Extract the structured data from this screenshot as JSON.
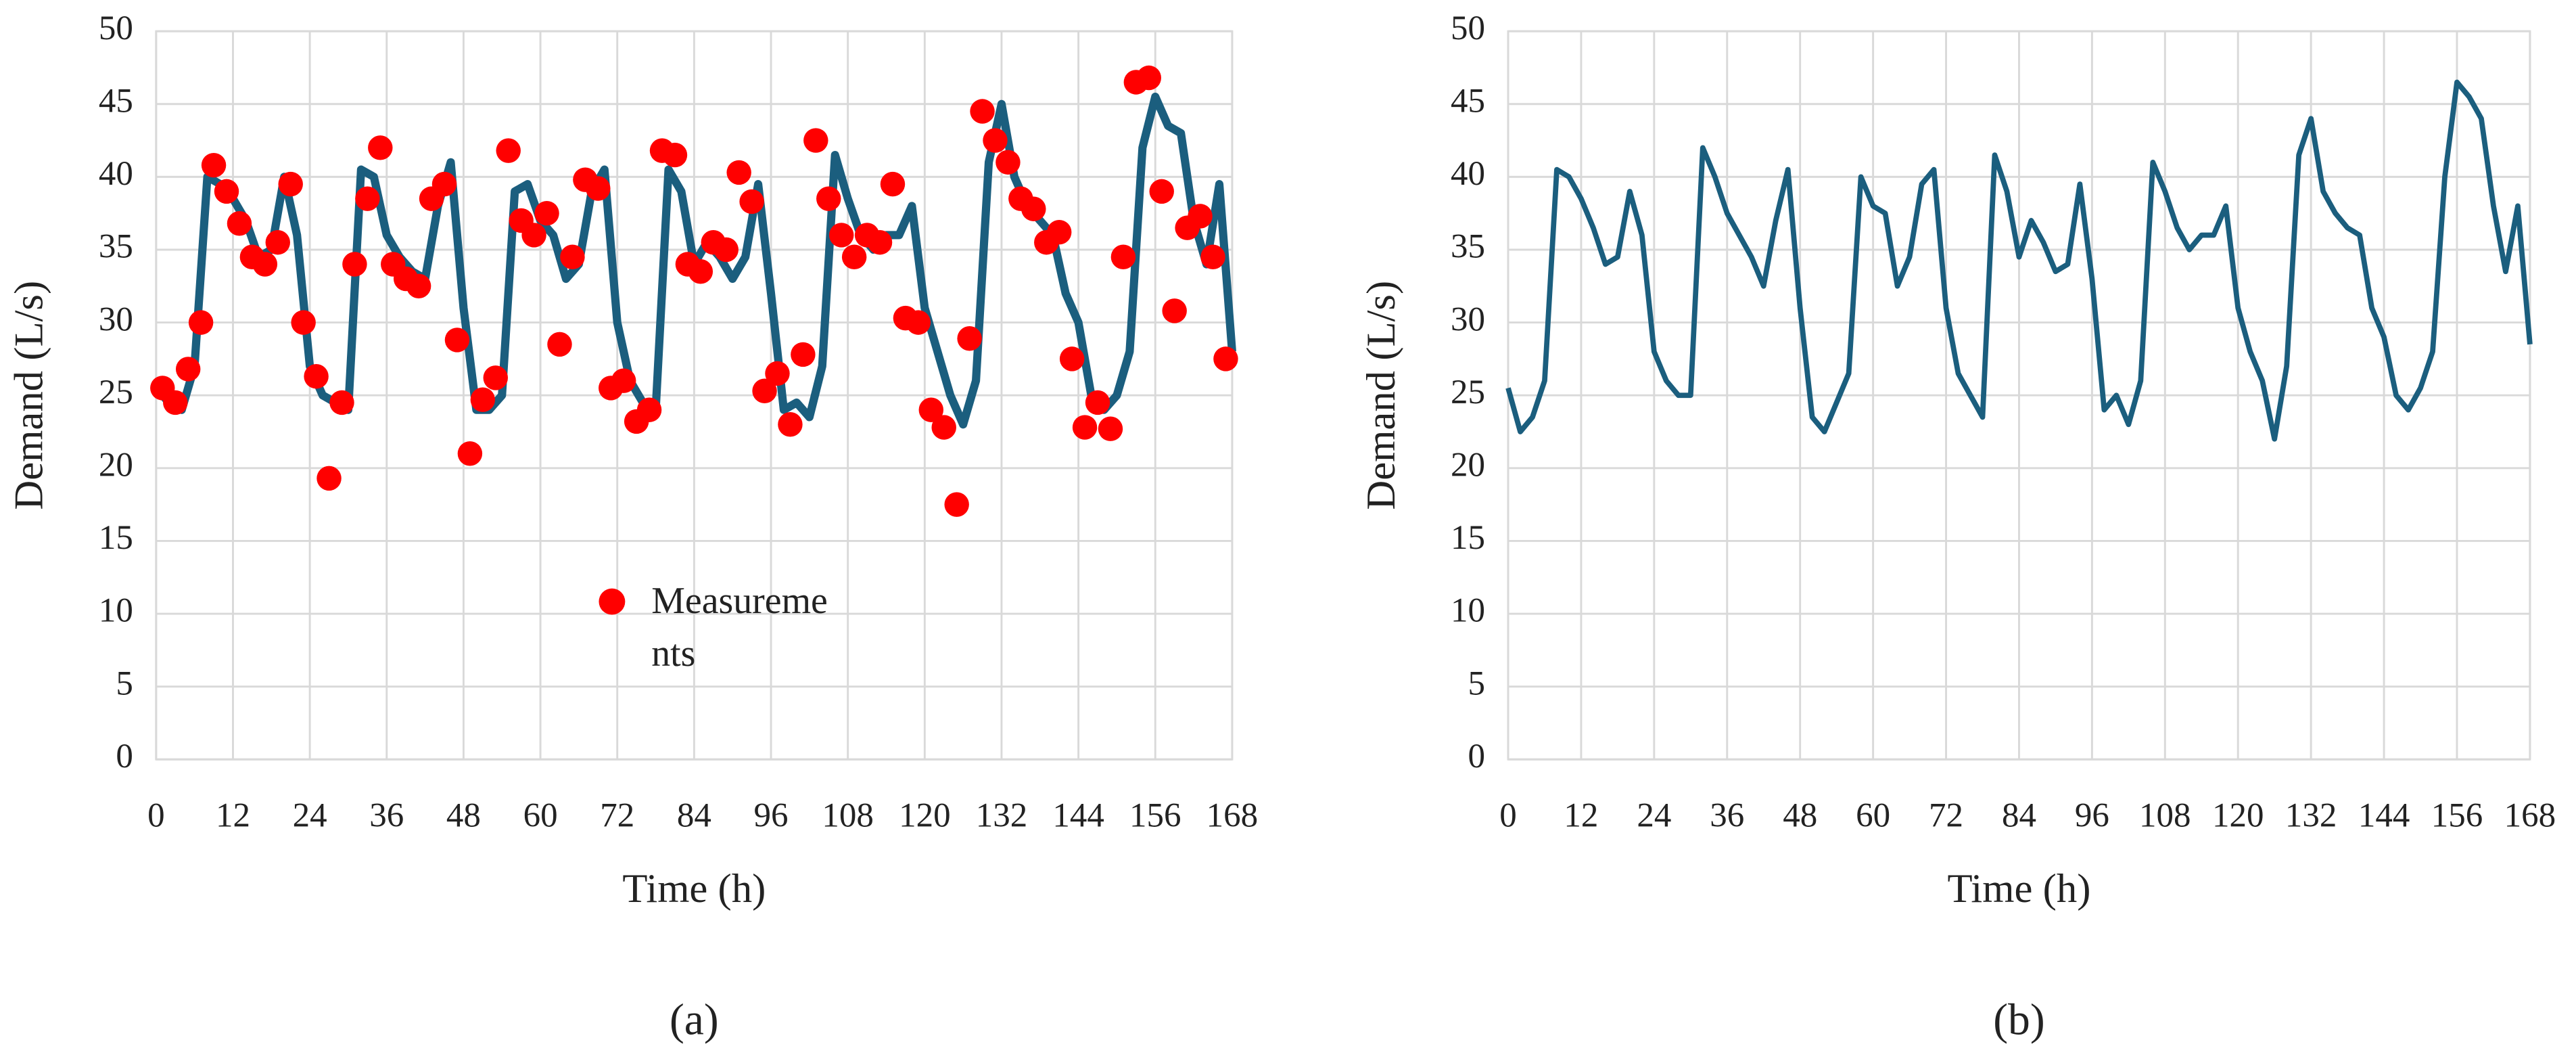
{
  "chart_data": [
    {
      "type": "line",
      "xlabel": "Time (h)",
      "ylabel": "Demand (L/s)",
      "caption": "(a)",
      "xlim": [
        0,
        168
      ],
      "xticks": [
        0,
        12,
        24,
        36,
        48,
        60,
        72,
        84,
        96,
        108,
        120,
        132,
        144,
        156,
        168
      ],
      "ylim": [
        0,
        50
      ],
      "yticks": [
        0,
        5,
        10,
        15,
        20,
        25,
        30,
        35,
        40,
        45,
        50
      ],
      "grid": true,
      "legend": "lower center",
      "series": [
        {
          "type": "line",
          "color": "#1b5e7e",
          "x": [
            0,
            2,
            4,
            6,
            8,
            10,
            12,
            14,
            16,
            18,
            20,
            22,
            24,
            26,
            28,
            30,
            32,
            34,
            36,
            38,
            40,
            42,
            44,
            46,
            48,
            50,
            52,
            54,
            56,
            58,
            60,
            62,
            64,
            66,
            68,
            70,
            72,
            74,
            76,
            78,
            80,
            82,
            84,
            86,
            88,
            90,
            92,
            94,
            96,
            98,
            100,
            102,
            104,
            106,
            108,
            110,
            112,
            114,
            116,
            118,
            120,
            122,
            124,
            126,
            128,
            130,
            132,
            134,
            136,
            138,
            140,
            142,
            144,
            146,
            148,
            150,
            152,
            154,
            156,
            158,
            160,
            162,
            164,
            166,
            168
          ],
          "values": [
            25.5,
            24.5,
            24,
            27,
            40,
            39.5,
            38.5,
            37,
            34.5,
            35,
            40,
            36,
            27,
            25,
            24.5,
            24,
            40.5,
            40,
            36,
            34.5,
            33.5,
            33,
            38,
            41,
            31,
            24,
            24,
            25,
            39,
            39.5,
            37,
            36,
            33,
            34,
            39,
            40.5,
            30,
            26,
            24.5,
            24,
            40.5,
            39,
            34,
            35.5,
            34.5,
            33,
            34.5,
            39.5,
            32,
            24,
            24.5,
            23.5,
            27,
            41.5,
            38.5,
            36,
            35,
            36,
            36,
            38,
            31,
            28,
            25,
            23,
            26,
            41,
            45,
            40,
            38,
            37,
            36,
            32,
            30,
            25,
            24,
            25,
            28,
            42,
            45.5,
            43.5,
            43,
            37,
            34,
            39.5,
            28
          ]
        },
        {
          "type": "scatter",
          "name": "Measurements",
          "color": "#ff0000",
          "x": [
            1,
            3,
            5,
            7,
            9,
            11,
            13,
            15,
            17,
            19,
            21,
            23,
            25,
            27,
            29,
            31,
            33,
            35,
            37,
            39,
            41,
            43,
            45,
            47,
            49,
            51,
            53,
            55,
            57,
            59,
            61,
            63,
            65,
            67,
            69,
            71,
            73,
            75,
            77,
            79,
            81,
            83,
            85,
            87,
            89,
            91,
            93,
            95,
            97,
            99,
            101,
            103,
            105,
            107,
            109,
            111,
            113,
            115,
            117,
            119,
            121,
            123,
            125,
            127,
            129,
            131,
            133,
            135,
            137,
            139,
            141,
            143,
            145,
            147,
            149,
            151,
            153,
            155,
            157,
            159,
            161,
            163,
            165,
            167
          ],
          "values": [
            25.5,
            24.5,
            26.8,
            30,
            40.8,
            39,
            36.8,
            34.5,
            34,
            35.5,
            39.5,
            30,
            26.3,
            19.3,
            24.5,
            34,
            38.5,
            42,
            34,
            33,
            32.5,
            38.5,
            39.5,
            28.8,
            21,
            24.7,
            26.2,
            41.8,
            37,
            36,
            37.5,
            28.5,
            34.5,
            39.8,
            39.2,
            25.5,
            26,
            23.2,
            24,
            41.8,
            41.5,
            34,
            33.5,
            35.5,
            35,
            40.3,
            38.3,
            25.3,
            26.5,
            23,
            27.8,
            42.5,
            38.5,
            36,
            34.5,
            36,
            35.5,
            39.5,
            30.3,
            30,
            24,
            22.8,
            17.5,
            28.9,
            44.5,
            42.5,
            41,
            38.5,
            37.8,
            35.5,
            36.2,
            27.5,
            22.8,
            24.5,
            22.7,
            34.5,
            46.5,
            46.8,
            39,
            30.8,
            36.5,
            37.3,
            34.5,
            27.5
          ]
        }
      ]
    },
    {
      "type": "line",
      "xlabel": "Time (h)",
      "ylabel": "Demand (L/s)",
      "caption": "(b)",
      "xlim": [
        0,
        168
      ],
      "xticks": [
        0,
        12,
        24,
        36,
        48,
        60,
        72,
        84,
        96,
        108,
        120,
        132,
        144,
        156,
        168
      ],
      "ylim": [
        0,
        50
      ],
      "yticks": [
        0,
        5,
        10,
        15,
        20,
        25,
        30,
        35,
        40,
        45,
        50
      ],
      "grid": true,
      "series": [
        {
          "type": "line",
          "color": "#1b5e7e",
          "x": [
            0,
            2,
            4,
            6,
            8,
            10,
            12,
            14,
            16,
            18,
            20,
            22,
            24,
            26,
            28,
            30,
            32,
            34,
            36,
            38,
            40,
            42,
            44,
            46,
            48,
            50,
            52,
            54,
            56,
            58,
            60,
            62,
            64,
            66,
            68,
            70,
            72,
            74,
            76,
            78,
            80,
            82,
            84,
            86,
            88,
            90,
            92,
            94,
            96,
            98,
            100,
            102,
            104,
            106,
            108,
            110,
            112,
            114,
            116,
            118,
            120,
            122,
            124,
            126,
            128,
            130,
            132,
            134,
            136,
            138,
            140,
            142,
            144,
            146,
            148,
            150,
            152,
            154,
            156,
            158,
            160,
            162,
            164,
            166,
            168
          ],
          "values": [
            25.5,
            22.5,
            23.5,
            26,
            40.5,
            40,
            38.5,
            36.5,
            34,
            34.5,
            39,
            36,
            28,
            26,
            25,
            25,
            42,
            40,
            37.5,
            36,
            34.5,
            32.5,
            37,
            40.5,
            31,
            23.5,
            22.5,
            24.5,
            26.5,
            40,
            38,
            37.5,
            32.5,
            34.5,
            39.5,
            40.5,
            31,
            26.5,
            25,
            23.5,
            41.5,
            39,
            34.5,
            37,
            35.5,
            33.5,
            34,
            39.5,
            33,
            24,
            25,
            23,
            26,
            41,
            39,
            36.5,
            35,
            36,
            36,
            38,
            31,
            28,
            26,
            22,
            27,
            41.5,
            44,
            39,
            37.5,
            36.5,
            36,
            31,
            29,
            25,
            24,
            25.5,
            28,
            40,
            46.5,
            45.5,
            44,
            38,
            33.5,
            38,
            28.5
          ]
        }
      ]
    }
  ]
}
